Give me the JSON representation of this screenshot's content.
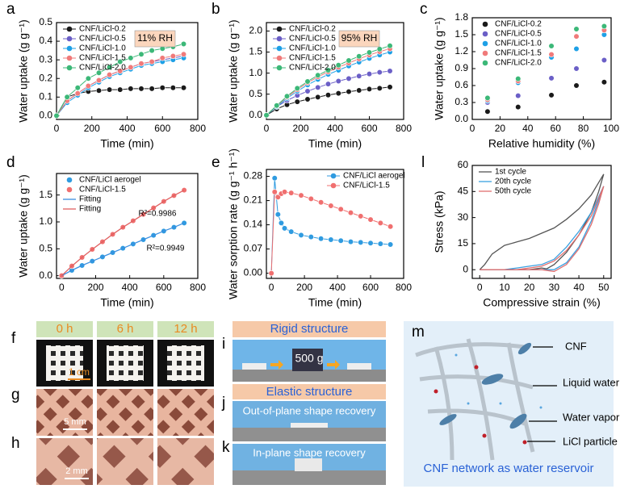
{
  "chart_data": [
    {
      "type": "line",
      "panel_label": "a",
      "x_label": "Time (min)",
      "y_label": "Water uptake (g g⁻¹)",
      "x": [
        0,
        60,
        120,
        180,
        240,
        300,
        360,
        420,
        480,
        540,
        600,
        660,
        720
      ],
      "xlim": [
        0,
        800
      ],
      "xticks": [
        0,
        200,
        400,
        600,
        800
      ],
      "ylim": [
        -0.02,
        0.5
      ],
      "yticks": [
        {
          "value": 0,
          "label": "0.0"
        },
        0.1,
        0.2,
        0.3,
        0.4,
        0.5
      ],
      "legend": "upper left",
      "annotations": [
        "11% RH"
      ],
      "series": [
        {
          "name": "CNF/LiCl-0.2",
          "color": "#1a1a1a",
          "mode": "lines+markers",
          "values": [
            0,
            0.1,
            0.12,
            0.13,
            0.135,
            0.14,
            0.14,
            0.145,
            0.145,
            0.145,
            0.15,
            0.15,
            0.15
          ]
        },
        {
          "name": "CNF/LiCl-0.5",
          "color": "#6b5fc7",
          "mode": "lines+markers",
          "values": [
            0,
            0.08,
            0.12,
            0.16,
            0.19,
            0.22,
            0.24,
            0.26,
            0.28,
            0.29,
            0.3,
            0.31,
            0.32
          ]
        },
        {
          "name": "CNF/LiCl-1.0",
          "color": "#1ea0e6",
          "mode": "lines+markers",
          "values": [
            0,
            0.07,
            0.11,
            0.15,
            0.18,
            0.21,
            0.23,
            0.25,
            0.27,
            0.28,
            0.29,
            0.3,
            0.31
          ]
        },
        {
          "name": "CNF/LiCl-1.5",
          "color": "#f07a7a",
          "mode": "lines+markers",
          "values": [
            0,
            0.08,
            0.12,
            0.16,
            0.19,
            0.22,
            0.24,
            0.26,
            0.28,
            0.29,
            0.31,
            0.32,
            0.33
          ]
        },
        {
          "name": "CNF/LiCl-2.0",
          "color": "#3cb878",
          "mode": "lines+markers",
          "values": [
            0,
            0.1,
            0.15,
            0.2,
            0.23,
            0.26,
            0.29,
            0.31,
            0.33,
            0.35,
            0.36,
            0.37,
            0.385
          ]
        }
      ]
    },
    {
      "type": "line",
      "panel_label": "b",
      "x_label": "Time (min)",
      "y_label": "Water uptake (g g⁻¹)",
      "x": [
        0,
        60,
        120,
        180,
        240,
        300,
        360,
        420,
        480,
        540,
        600,
        660,
        720
      ],
      "xlim": [
        0,
        800
      ],
      "xticks": [
        0,
        200,
        400,
        600,
        800
      ],
      "ylim": [
        -0.1,
        2.2
      ],
      "yticks": [
        {
          "value": 0,
          "label": "0.0"
        },
        0.5,
        {
          "value": 1,
          "label": "1.0"
        },
        1.5,
        {
          "value": 2,
          "label": "2.0"
        }
      ],
      "legend": "upper left",
      "annotations": [
        "95% RH"
      ],
      "series": [
        {
          "name": "CNF/LiCl-0.2",
          "color": "#1a1a1a",
          "mode": "lines+markers",
          "values": [
            0,
            0.15,
            0.25,
            0.32,
            0.38,
            0.43,
            0.48,
            0.52,
            0.56,
            0.59,
            0.62,
            0.64,
            0.67
          ]
        },
        {
          "name": "CNF/LiCl-0.5",
          "color": "#6b5fc7",
          "mode": "lines+markers",
          "values": [
            0,
            0.2,
            0.35,
            0.47,
            0.57,
            0.66,
            0.74,
            0.81,
            0.87,
            0.93,
            0.98,
            1.02,
            1.05
          ]
        },
        {
          "name": "CNF/LiCl-1.0",
          "color": "#1ea0e6",
          "mode": "lines+markers",
          "values": [
            0,
            0.2,
            0.4,
            0.57,
            0.72,
            0.85,
            0.97,
            1.07,
            1.17,
            1.26,
            1.35,
            1.43,
            1.5
          ]
        },
        {
          "name": "CNF/LiCl-1.5",
          "color": "#f07a7a",
          "mode": "lines+markers",
          "values": [
            0,
            0.22,
            0.43,
            0.61,
            0.77,
            0.91,
            1.03,
            1.14,
            1.24,
            1.34,
            1.43,
            1.51,
            1.58
          ]
        },
        {
          "name": "CNF/LiCl-2.0",
          "color": "#3cb878",
          "mode": "lines+markers",
          "values": [
            0,
            0.23,
            0.45,
            0.64,
            0.8,
            0.95,
            1.07,
            1.19,
            1.3,
            1.4,
            1.49,
            1.57,
            1.65
          ]
        }
      ]
    },
    {
      "type": "scatter",
      "panel_label": "c",
      "x_label": "Relative humidity (%)",
      "y_label": "Water uptake (g g⁻¹)",
      "x": [
        11,
        33,
        57,
        75,
        95
      ],
      "xlim": [
        0,
        100
      ],
      "xticks": [
        0,
        20,
        40,
        60,
        80,
        100
      ],
      "ylim": [
        0,
        1.8
      ],
      "yticks": [
        {
          "value": 0,
          "label": "0.0"
        },
        0.3,
        0.6,
        0.9,
        1.2,
        1.5,
        1.8
      ],
      "legend": "upper left",
      "series": [
        {
          "name": "CNF/LiCl-0.2",
          "color": "#1a1a1a",
          "mode": "markers",
          "values": [
            0.14,
            0.22,
            0.43,
            0.6,
            0.66
          ]
        },
        {
          "name": "CNF/LiCl-0.5",
          "color": "#6b5fc7",
          "mode": "markers",
          "values": [
            0.3,
            0.42,
            0.73,
            0.9,
            1.05
          ]
        },
        {
          "name": "CNF/LiCl-1.0",
          "color": "#1ea0e6",
          "mode": "markers",
          "values": [
            0.33,
            0.65,
            1.1,
            1.25,
            1.5
          ]
        },
        {
          "name": "CNF/LiCl-1.5",
          "color": "#f07a7a",
          "mode": "markers",
          "values": [
            0.35,
            0.68,
            1.15,
            1.47,
            1.58
          ]
        },
        {
          "name": "CNF/LiCl-2.0",
          "color": "#3cb878",
          "mode": "markers",
          "values": [
            0.38,
            0.72,
            1.3,
            1.6,
            1.65
          ]
        }
      ]
    },
    {
      "type": "scatter",
      "panel_label": "d",
      "x_label": "Time (min)",
      "y_label": "Water uptake (g g⁻¹)",
      "x": [
        0,
        60,
        120,
        180,
        240,
        300,
        360,
        420,
        480,
        540,
        600,
        660,
        720
      ],
      "xlim": [
        -30,
        800
      ],
      "xticks": [
        0,
        200,
        400,
        600,
        800
      ],
      "ylim": [
        -0.05,
        1.9
      ],
      "yticks": [
        {
          "value": 0,
          "label": "0.0"
        },
        0.5,
        {
          "value": 1,
          "label": "1.0"
        },
        1.5
      ],
      "legend": "upper left",
      "annotations": [
        "R²=0.9986",
        "R²=0.9949"
      ],
      "series": [
        {
          "name": "CNF/LiCl aerogel",
          "color": "#2f9be0",
          "mode": "markers",
          "values": [
            0,
            0.1,
            0.19,
            0.27,
            0.35,
            0.43,
            0.51,
            0.59,
            0.67,
            0.75,
            0.83,
            0.9,
            0.98
          ]
        },
        {
          "name": "CNF/LiCl-1.5",
          "color": "#f06f6f",
          "mode": "markers",
          "values": [
            0,
            0.18,
            0.34,
            0.49,
            0.63,
            0.77,
            0.9,
            1.02,
            1.14,
            1.26,
            1.38,
            1.49,
            1.59
          ]
        },
        {
          "name": "Fitting",
          "color": "#3b8fe0",
          "mode": "lines",
          "values": [
            0,
            0.1,
            0.19,
            0.27,
            0.35,
            0.43,
            0.51,
            0.59,
            0.67,
            0.75,
            0.83,
            0.9,
            0.98
          ]
        },
        {
          "name": "Fitting",
          "color": "#e06060",
          "mode": "lines",
          "values": [
            0,
            0.18,
            0.34,
            0.49,
            0.63,
            0.77,
            0.9,
            1.02,
            1.14,
            1.26,
            1.38,
            1.49,
            1.59
          ]
        }
      ]
    },
    {
      "type": "line",
      "panel_label": "e",
      "x_label": "Time (min)",
      "y_label": "Water sorption rate (g g⁻¹ h⁻¹)",
      "x": [
        0,
        20,
        40,
        60,
        80,
        120,
        180,
        240,
        300,
        360,
        420,
        480,
        540,
        600,
        660,
        720
      ],
      "xlim": [
        -30,
        800
      ],
      "xticks": [
        0,
        200,
        400,
        600,
        800
      ],
      "ylim": [
        -0.015,
        0.3
      ],
      "yticks": [
        {
          "value": 0,
          "label": "0.00"
        },
        0.07,
        0.14,
        0.21,
        0.28
      ],
      "legend": "upper right",
      "series": [
        {
          "name": "CNF/LiCl aerogel",
          "color": "#2f9be0",
          "mode": "lines+markers",
          "values": [
            0,
            0.275,
            0.17,
            0.145,
            0.13,
            0.12,
            0.11,
            0.105,
            0.1,
            0.097,
            0.094,
            0.091,
            0.089,
            0.087,
            0.085,
            0.083
          ]
        },
        {
          "name": "CNF/LiCl-1.5",
          "color": "#f06f6f",
          "mode": "lines+markers",
          "values": [
            0,
            0.235,
            0.22,
            0.23,
            0.235,
            0.232,
            0.225,
            0.215,
            0.205,
            0.195,
            0.185,
            0.175,
            0.165,
            0.155,
            0.145,
            0.135
          ]
        }
      ]
    },
    {
      "type": "line",
      "panel_label": "l",
      "x_label": "Compressive strain (%)",
      "y_label": "Stress (kPa)",
      "xlim": [
        -3,
        53
      ],
      "xticks": [
        0,
        10,
        20,
        30,
        40,
        50
      ],
      "ylim": [
        -5,
        60
      ],
      "yticks": [
        0,
        15,
        30,
        45,
        60
      ],
      "legend": "upper left",
      "series": [
        {
          "name": "1st cycle",
          "color": "#555555",
          "mode": "lines",
          "x": [
            0,
            2,
            5,
            10,
            15,
            20,
            25,
            30,
            35,
            40,
            45,
            50,
            48,
            45,
            40,
            35,
            30,
            27,
            25,
            20,
            15,
            10,
            5,
            0
          ],
          "values": [
            0,
            3,
            9,
            14,
            16,
            18,
            21,
            24,
            29,
            35,
            43,
            55,
            45,
            33,
            20,
            10,
            3,
            0.5,
            1,
            0,
            0,
            0,
            0,
            0
          ]
        },
        {
          "name": "20th cycle",
          "color": "#3aa0e0",
          "mode": "lines",
          "x": [
            0,
            5,
            10,
            15,
            20,
            25,
            30,
            35,
            40,
            45,
            50,
            48,
            45,
            40,
            35,
            30,
            25,
            20,
            10,
            0
          ],
          "values": [
            0,
            0,
            0,
            1,
            2,
            3,
            6,
            13,
            22,
            33,
            48,
            40,
            28,
            13,
            4,
            0,
            0,
            0,
            0,
            0
          ]
        },
        {
          "name": "50th cycle",
          "color": "#e07070",
          "mode": "lines",
          "x": [
            0,
            5,
            10,
            15,
            20,
            25,
            30,
            35,
            40,
            45,
            50,
            48,
            45,
            40,
            35,
            30,
            25,
            20,
            10,
            0
          ],
          "values": [
            0,
            0,
            0,
            0,
            1,
            2,
            5,
            11,
            20,
            31,
            48,
            38,
            26,
            12,
            3,
            -1,
            0,
            0,
            0,
            0
          ]
        }
      ]
    }
  ],
  "photos": {
    "labels": [
      "f",
      "g",
      "h",
      "i",
      "j",
      "k",
      "m"
    ],
    "times": [
      "0 h",
      "6 h",
      "12 h"
    ],
    "scale_bars": [
      "1 cm",
      "5 mm",
      "2 mm"
    ],
    "rigid_title": "Rigid structure",
    "weight": "500 g",
    "elastic_title": "Elastic structure",
    "j_caption": "Out-of-plane shape recovery",
    "k_caption": "In-plane shape recovery",
    "m_labels": [
      "CNF",
      "Liquid water",
      "Water vapor",
      "LiCl particle"
    ],
    "m_caption": "CNF network as water reservoir"
  }
}
